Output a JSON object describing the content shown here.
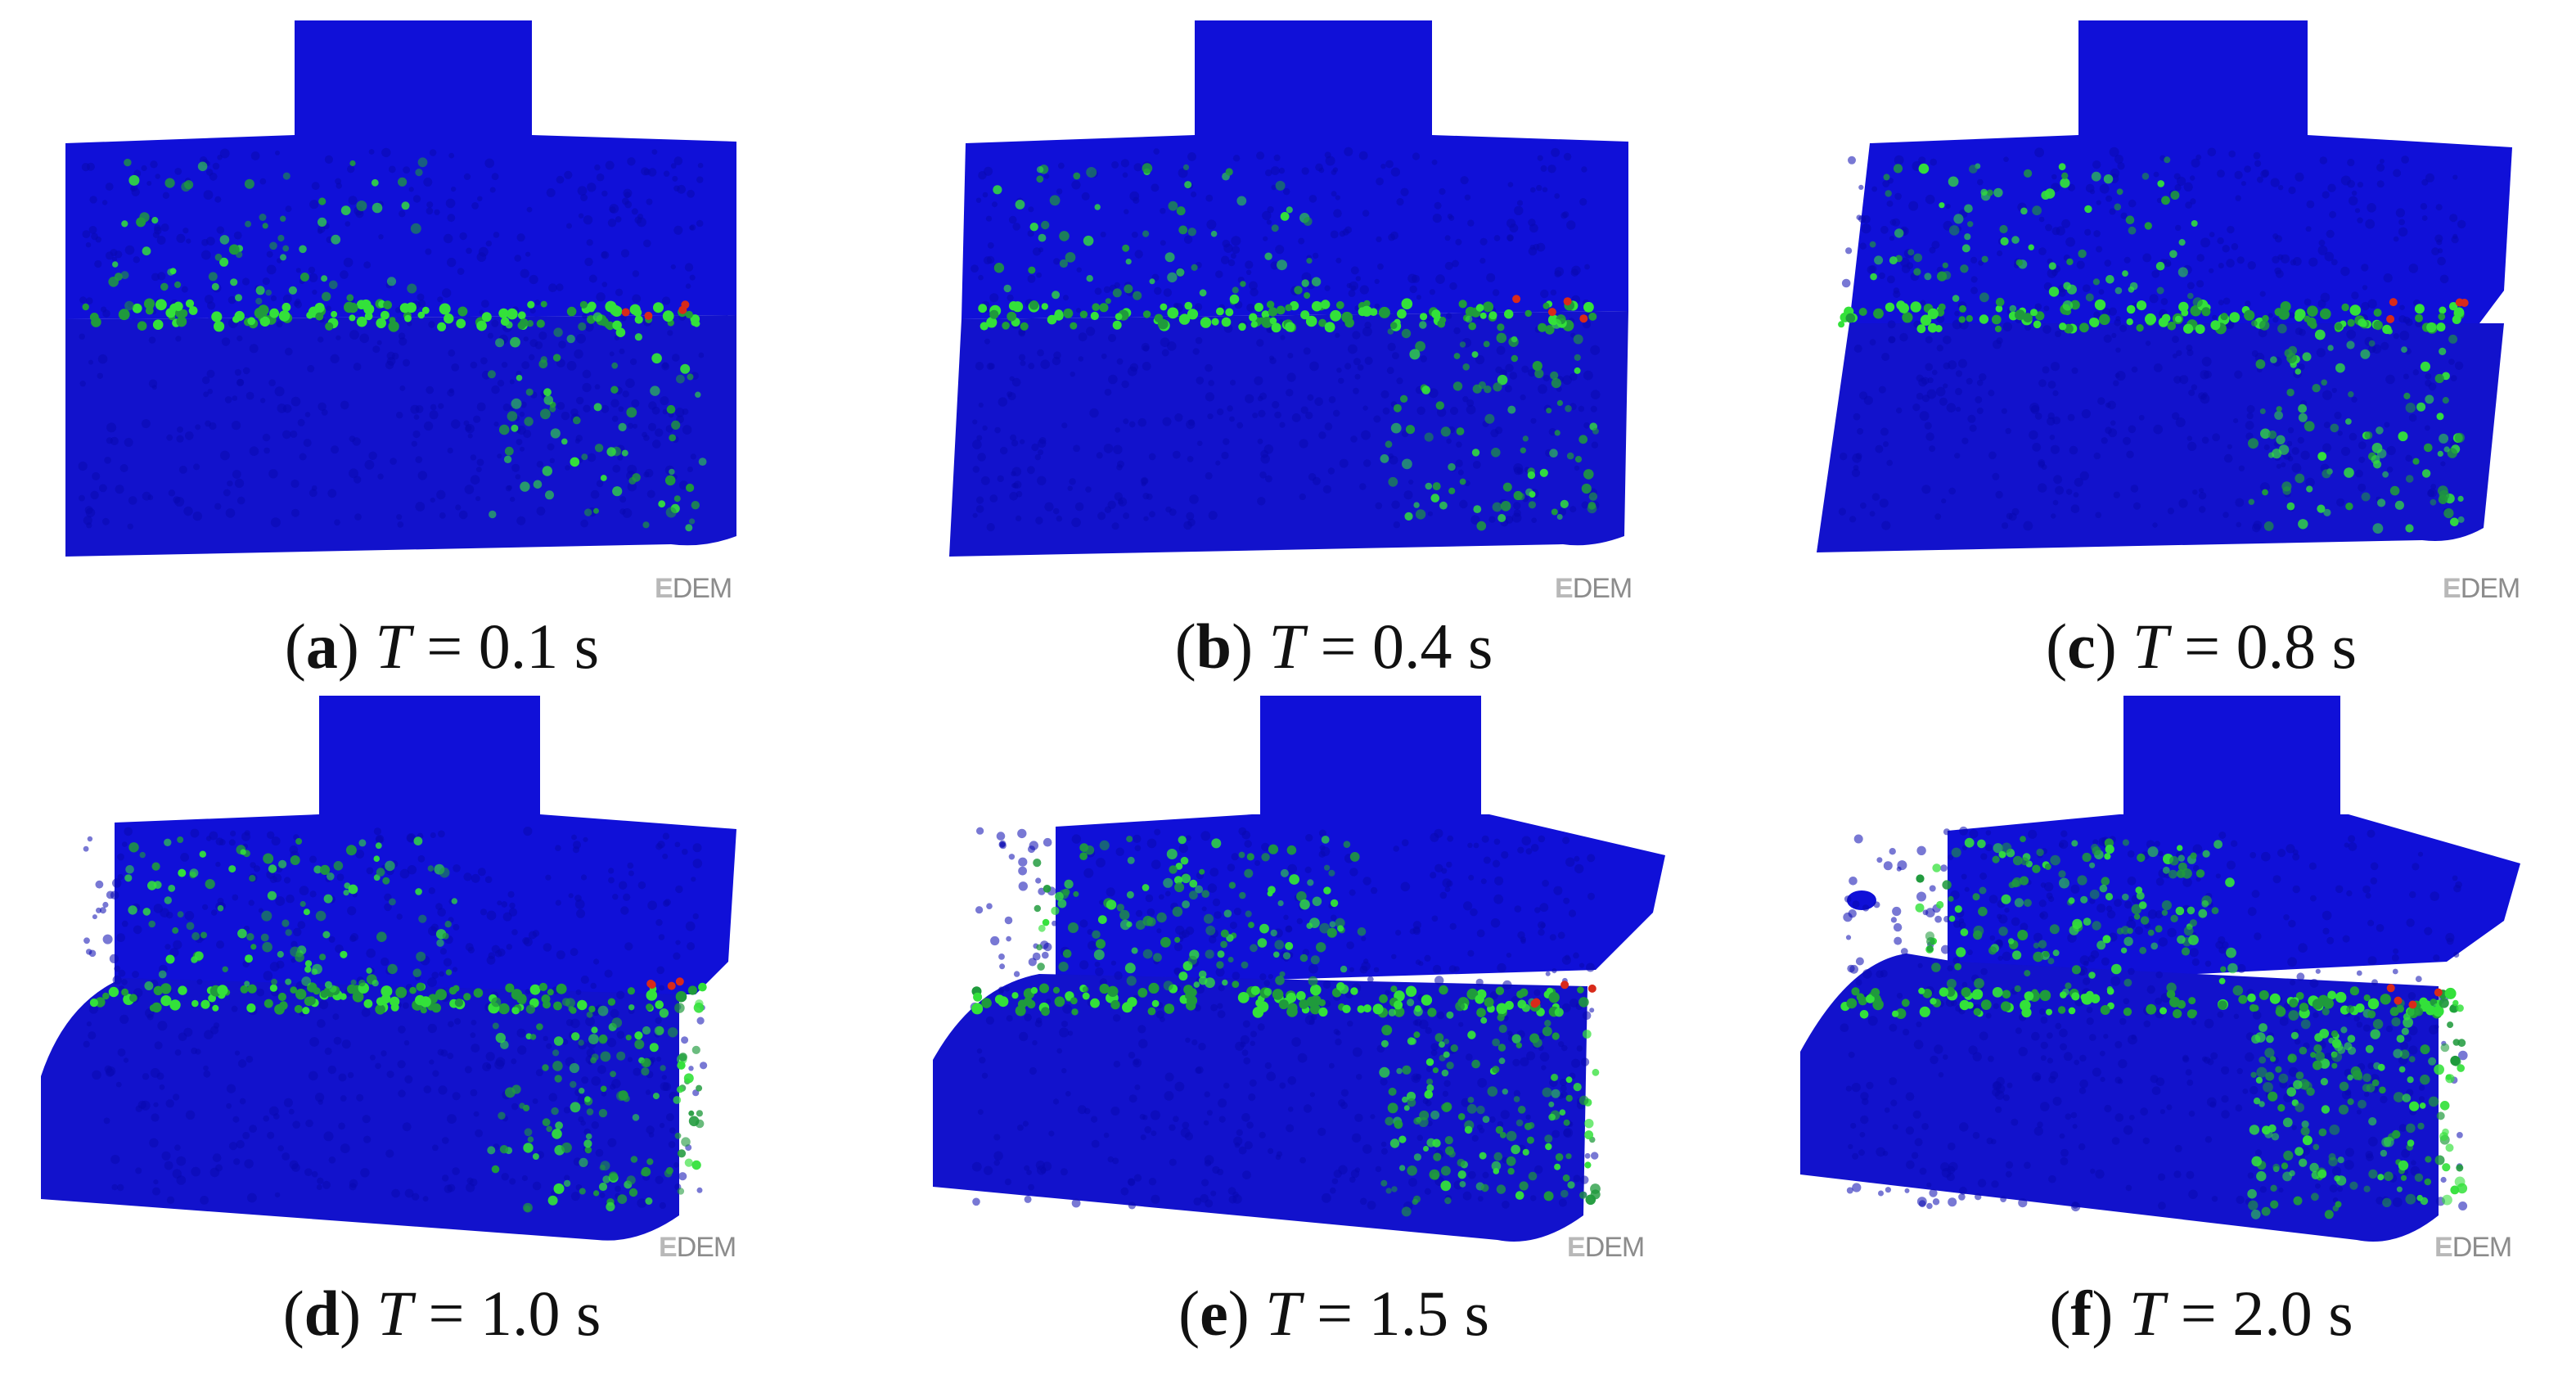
{
  "brand": {
    "watermark_prefix": "E",
    "watermark_rest": "DEM",
    "colors": {
      "base": "#1010d8",
      "shade": "#0a0ab0",
      "medium": "#1f9a3c",
      "high": "#33e13a",
      "peak": "#d82a1a"
    }
  },
  "panels": [
    {
      "letter": "a",
      "open": "(",
      "close": ")",
      "symbol": "T",
      "equals": " = ",
      "time": "0.1",
      "unit": " s",
      "shift": 0
    },
    {
      "letter": "b",
      "open": "(",
      "close": ")",
      "symbol": "T",
      "equals": " = ",
      "time": "0.4",
      "unit": " s",
      "shift": 0.02
    },
    {
      "letter": "c",
      "open": "(",
      "close": ")",
      "symbol": "T",
      "equals": " = ",
      "time": "0.8",
      "unit": " s",
      "shift": 0.06
    },
    {
      "letter": "d",
      "open": "(",
      "close": ")",
      "symbol": "T",
      "equals": " = ",
      "time": "1.0",
      "unit": " s",
      "shift": 0.12
    },
    {
      "letter": "e",
      "open": "(",
      "close": ")",
      "symbol": "T",
      "equals": " = ",
      "time": "1.5",
      "unit": " s",
      "shift": 0.18
    },
    {
      "letter": "f",
      "open": "(",
      "close": ")",
      "symbol": "T",
      "equals": " = ",
      "time": "2.0",
      "unit": " s",
      "shift": 0.24
    }
  ]
}
